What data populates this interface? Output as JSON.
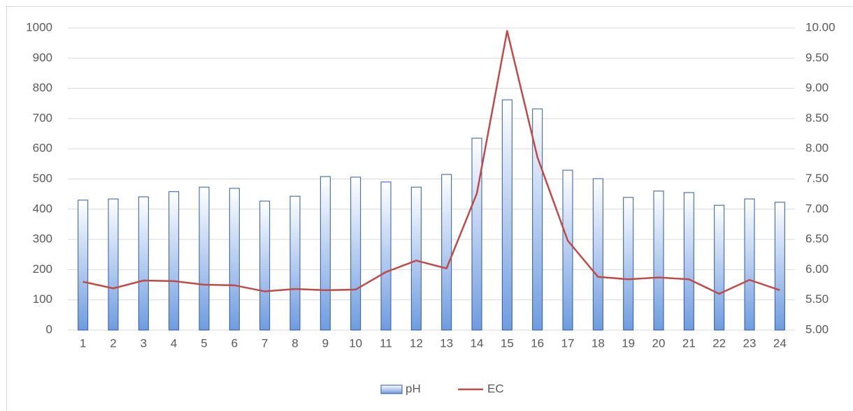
{
  "chart_data": {
    "type": "bar-line",
    "categories": [
      "1",
      "2",
      "3",
      "4",
      "5",
      "6",
      "7",
      "8",
      "9",
      "10",
      "11",
      "12",
      "13",
      "14",
      "15",
      "16",
      "17",
      "18",
      "19",
      "20",
      "21",
      "22",
      "23",
      "24"
    ],
    "series": [
      {
        "name": "pH",
        "type": "bar",
        "color": "#6f9ce0",
        "values": [
          430,
          434,
          441,
          458,
          473,
          469,
          427,
          443,
          508,
          506,
          490,
          473,
          515,
          635,
          762,
          732,
          529,
          501,
          439,
          460,
          455,
          413,
          434,
          423
        ]
      },
      {
        "name": "EC",
        "type": "line",
        "axis": "y2",
        "color": "#be4b48",
        "values": [
          5.8,
          5.69,
          5.82,
          5.81,
          5.75,
          5.74,
          5.64,
          5.68,
          5.66,
          5.67,
          5.96,
          6.15,
          6.02,
          7.26,
          9.95,
          7.86,
          6.48,
          5.88,
          5.84,
          5.87,
          5.84,
          5.6,
          5.83,
          5.66
        ]
      }
    ],
    "ylim": [
      0,
      1000
    ],
    "yticks": [
      0,
      100,
      200,
      300,
      400,
      500,
      600,
      700,
      800,
      900,
      1000
    ],
    "y2lim": [
      5,
      10
    ],
    "y2ticks": [
      {
        "value": 5,
        "label": "5.00"
      },
      {
        "value": 5.5,
        "label": "5.50"
      },
      {
        "value": 6,
        "label": "6.00"
      },
      {
        "value": 6.5,
        "label": "6.50"
      },
      {
        "value": 7,
        "label": "7.00"
      },
      {
        "value": 7.5,
        "label": "7.50"
      },
      {
        "value": 8,
        "label": "8.00"
      },
      {
        "value": 8.5,
        "label": "8.50"
      },
      {
        "value": 9,
        "label": "9.00"
      },
      {
        "value": 9.5,
        "label": "9.50"
      },
      {
        "value": 10,
        "label": "10.00"
      }
    ],
    "grid": true,
    "legend": "bottom"
  }
}
